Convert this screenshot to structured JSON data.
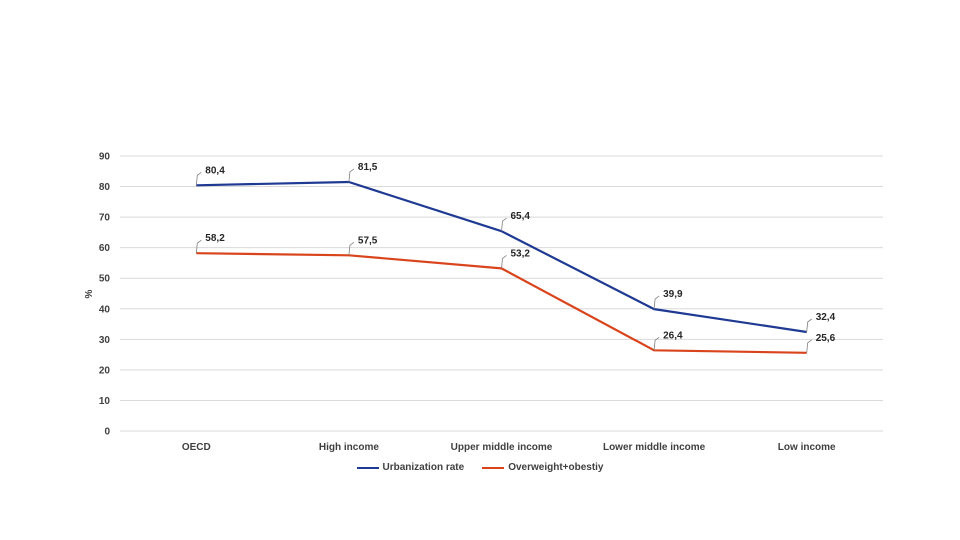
{
  "chart_data": {
    "type": "line",
    "categories": [
      "OECD",
      "High income",
      "Upper middle income",
      "Lower middle income",
      "Low income"
    ],
    "series": [
      {
        "name": "Urbanization rate",
        "values": [
          80.4,
          81.5,
          65.4,
          39.9,
          32.4
        ],
        "labels": [
          "80,4",
          "81,5",
          "65,4",
          "39,9",
          "32,4"
        ],
        "color": "#1F3A93"
      },
      {
        "name": "Overweight+obestiy",
        "values": [
          58.2,
          57.5,
          53.2,
          26.4,
          25.6
        ],
        "labels": [
          "58,2",
          "57,5",
          "53,2",
          "26,4",
          "25,6"
        ],
        "color": "#D9441C"
      }
    ],
    "ylabel": "%",
    "xlabel": "",
    "ylim": [
      0,
      90
    ],
    "yticks": [
      0,
      10,
      20,
      30,
      40,
      50,
      60,
      70,
      80,
      90
    ],
    "grid": true,
    "legend": "bottom"
  }
}
